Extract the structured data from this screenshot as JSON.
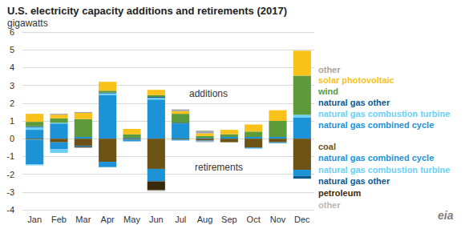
{
  "chart_data": {
    "type": "bar",
    "title": "U.S. electricity capacity additions and retirements (2017)",
    "subtitle": "gigawatts",
    "categories": [
      "Jan",
      "Feb",
      "Mar",
      "Apr",
      "May",
      "Jun",
      "Jul",
      "Aug",
      "Sep",
      "Oct",
      "Nov",
      "Dec"
    ],
    "stacked": true,
    "grid": true,
    "legend": "right",
    "ylim": [
      -4,
      6
    ],
    "yticks": [
      -4,
      -3,
      -2,
      -1,
      0,
      1,
      2,
      3,
      4,
      5,
      6
    ],
    "annotations": [
      {
        "text": "additions"
      },
      {
        "text": "retirements"
      },
      {
        "text": "eia"
      }
    ],
    "series": [
      {
        "name": "natural gas combined cycle",
        "group": "additions",
        "color": "#1b93d6",
        "values": [
          0.5,
          0.85,
          0.1,
          2.45,
          0.05,
          2.2,
          0.85,
          0.05,
          0.1,
          0.1,
          0.1,
          1.2
        ]
      },
      {
        "name": "natural gas combustion turbine",
        "group": "additions",
        "color": "#6ccff6",
        "values": [
          0.15,
          0.05,
          0,
          0.1,
          0,
          0.1,
          0,
          0,
          0,
          0,
          0,
          0.15
        ]
      },
      {
        "name": "natural gas other",
        "group": "additions",
        "color": "#0b5a8c",
        "values": [
          0.05,
          0,
          0,
          0.05,
          0,
          0.05,
          0.05,
          0,
          0,
          0,
          0,
          0
        ]
      },
      {
        "name": "wind",
        "group": "additions",
        "color": "#5c9a3a",
        "values": [
          0.25,
          0.25,
          1.0,
          0.1,
          0.2,
          0.1,
          0.5,
          0.1,
          0.15,
          0.3,
          0.9,
          2.2
        ]
      },
      {
        "name": "solar photovoltaic",
        "group": "additions",
        "color": "#f9c21a",
        "values": [
          0.45,
          0.2,
          0.35,
          0.5,
          0.3,
          0.3,
          0.15,
          0.15,
          0.25,
          0.4,
          0.6,
          1.4
        ]
      },
      {
        "name": "other",
        "group": "additions",
        "color": "#a6a6a6",
        "values": [
          0,
          0.05,
          0.05,
          0,
          0,
          0,
          0.1,
          0.15,
          0,
          0,
          0,
          0
        ]
      },
      {
        "name": "coal",
        "group": "retirements",
        "color": "#6e5317",
        "values": [
          -0.05,
          -0.2,
          -0.4,
          -1.3,
          -0.05,
          -1.7,
          -0.05,
          -0.1,
          -0.2,
          -0.5,
          -0.2,
          -1.75
        ]
      },
      {
        "name": "natural gas combined cycle",
        "group": "retirements",
        "color": "#1b93d6",
        "values": [
          -1.4,
          -0.4,
          -0.05,
          -0.3,
          -0.1,
          -0.7,
          -0.05,
          -0.05,
          0,
          -0.05,
          -0.05,
          -0.35
        ]
      },
      {
        "name": "natural gas combustion turbine",
        "group": "retirements",
        "color": "#6ccff6",
        "values": [
          -0.05,
          -0.2,
          0,
          0,
          0,
          0,
          0,
          0,
          0,
          0,
          0,
          0
        ]
      },
      {
        "name": "natural gas other",
        "group": "retirements",
        "color": "#0b5a8c",
        "values": [
          0,
          0,
          0,
          0,
          0,
          0,
          0,
          0,
          0,
          0,
          0,
          -0.15
        ]
      },
      {
        "name": "petroleum",
        "group": "retirements",
        "color": "#3a2a0c",
        "values": [
          0,
          0,
          -0.05,
          0,
          0,
          -0.5,
          0,
          0,
          0,
          0,
          0,
          0
        ]
      },
      {
        "name": "other",
        "group": "retirements",
        "color": "#b8b8b8",
        "values": [
          0,
          0,
          0,
          0,
          0,
          -0.05,
          0,
          -0.05,
          0,
          0,
          0,
          0
        ]
      }
    ]
  }
}
